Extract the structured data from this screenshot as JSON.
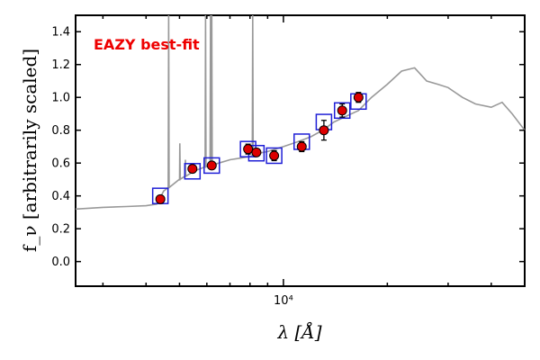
{
  "chart_data": {
    "type": "scatter",
    "title": "",
    "annotation": "EAZY best-fit",
    "xlabel": "λ [Å]",
    "ylabel": "f_ν [arbitrarily scaled]",
    "x_scale": "log",
    "xlim": [
      2500,
      50000
    ],
    "ylim": [
      -0.15,
      1.5
    ],
    "y_ticks": [
      0.0,
      0.2,
      0.4,
      0.6,
      0.8,
      1.0,
      1.2,
      1.4
    ],
    "y_tick_labels": [
      "0.0",
      "0.2",
      "0.4",
      "0.6",
      "0.8",
      "1.0",
      "1.2",
      "1.4"
    ],
    "x_major_tick": 10000,
    "x_major_tick_label": "10⁴",
    "grid": false,
    "colors": {
      "observed_fill": "#dd0000",
      "model_box": "#1f1fd6",
      "template_line": "#999999",
      "annotation": "#ee0000"
    },
    "observed": {
      "x": [
        4400,
        5450,
        6200,
        7900,
        8350,
        9400,
        11300,
        13100,
        14800,
        16500
      ],
      "y": [
        0.38,
        0.565,
        0.585,
        0.685,
        0.665,
        0.645,
        0.7,
        0.8,
        0.92,
        1.0
      ],
      "yerr": [
        0.015,
        0.02,
        0.02,
        0.03,
        0.02,
        0.03,
        0.03,
        0.06,
        0.04,
        0.03
      ]
    },
    "model": {
      "x": [
        4400,
        5450,
        6200,
        7900,
        8350,
        9400,
        11300,
        13100,
        14800,
        16500
      ],
      "y": [
        0.4,
        0.55,
        0.585,
        0.685,
        0.66,
        0.645,
        0.73,
        0.85,
        0.92,
        0.975
      ]
    },
    "template": {
      "x": [
        2500,
        3000,
        3500,
        4000,
        4300,
        4500,
        5000,
        5500,
        6000,
        6500,
        7000,
        7500,
        8000,
        8500,
        9000,
        10000,
        11000,
        12000,
        13000,
        14000,
        15000,
        16500,
        18000,
        20000,
        22000,
        24000,
        26000,
        28000,
        30000,
        33000,
        36000,
        40000,
        43000,
        46000,
        50000
      ],
      "y": [
        0.32,
        0.33,
        0.335,
        0.34,
        0.35,
        0.43,
        0.5,
        0.55,
        0.58,
        0.6,
        0.62,
        0.63,
        0.64,
        0.66,
        0.67,
        0.7,
        0.73,
        0.76,
        0.8,
        0.85,
        0.88,
        0.92,
        1.0,
        1.08,
        1.16,
        1.18,
        1.1,
        1.08,
        1.06,
        1.0,
        0.96,
        0.94,
        0.97,
        0.9,
        0.8
      ],
      "emission_lines": [
        {
          "x": 4650,
          "peak": 1.5
        },
        {
          "x": 5010,
          "peak": 0.72
        },
        {
          "x": 5200,
          "peak": 0.62
        },
        {
          "x": 5950,
          "peak": 1.5
        },
        {
          "x": 6150,
          "peak": 1.5
        },
        {
          "x": 6200,
          "peak": 1.5
        },
        {
          "x": 8150,
          "peak": 1.5
        }
      ]
    }
  }
}
